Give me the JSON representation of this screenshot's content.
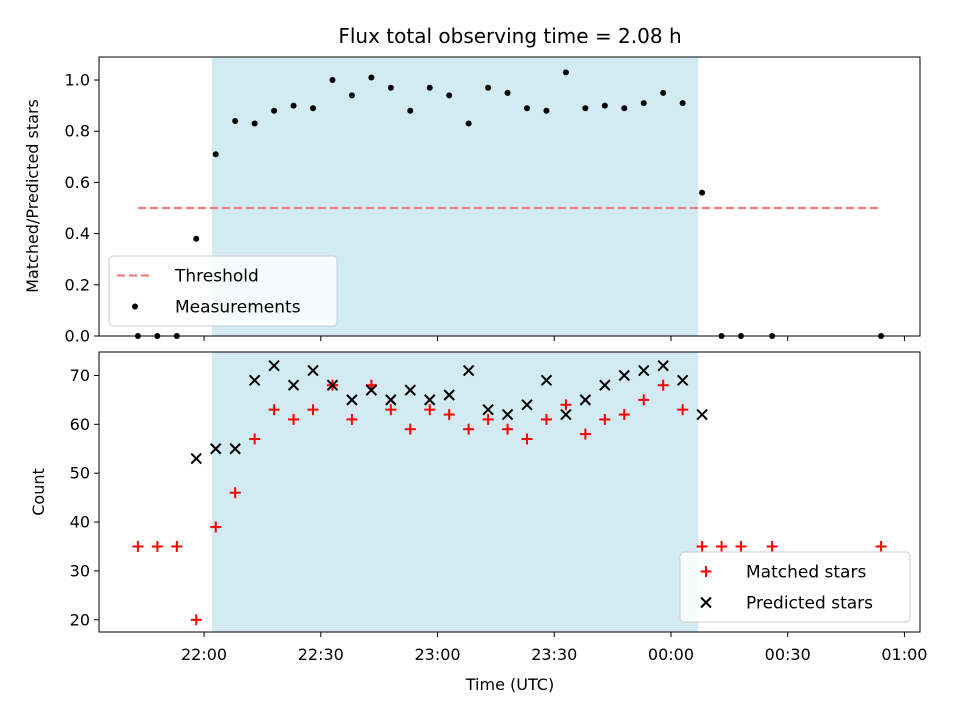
{
  "chart_data": {
    "title": "Flux total observing time = 2.08 h",
    "xlabel": "Time (UTC)",
    "x_ticks": [
      "22:00",
      "22:30",
      "23:00",
      "23:30",
      "00:00",
      "00:30",
      "01:00"
    ],
    "x_tick_minutes": [
      0,
      30,
      60,
      90,
      120,
      150,
      180
    ],
    "xlim_minutes": [
      -27,
      184
    ],
    "observing_window_minutes": [
      2,
      127
    ],
    "observing_window_color": "#add8e6",
    "panels": [
      {
        "type": "scatter",
        "ylabel": "Matched/Predicted stars",
        "ylim": [
          0,
          1.09
        ],
        "y_ticks": [
          "0.0",
          "0.2",
          "0.4",
          "0.6",
          "0.8",
          "1.0"
        ],
        "y_tick_values": [
          0,
          0.2,
          0.4,
          0.6,
          0.8,
          1.0
        ],
        "threshold": {
          "label": "Threshold",
          "value": 0.5,
          "x_range": [
            -17,
            174
          ],
          "color": "#f08080"
        },
        "legend": {
          "position": "lower-left",
          "items": [
            "Threshold",
            "Measurements"
          ]
        },
        "series": [
          {
            "name": "Measurements",
            "color": "#000000",
            "x": [
              -17,
              -12,
              -7,
              -2,
              3,
              8,
              13,
              18,
              23,
              28,
              33,
              38,
              43,
              48,
              53,
              58,
              63,
              68,
              73,
              78,
              83,
              88,
              93,
              98,
              103,
              108,
              113,
              118,
              123,
              128,
              133,
              138,
              146,
              174
            ],
            "y": [
              0,
              0,
              0,
              0.38,
              0.71,
              0.84,
              0.83,
              0.88,
              0.9,
              0.89,
              1.0,
              0.94,
              1.01,
              0.97,
              0.88,
              0.97,
              0.94,
              0.83,
              0.97,
              0.95,
              0.89,
              0.88,
              1.03,
              0.89,
              0.9,
              0.89,
              0.91,
              0.95,
              0.91,
              0.56,
              0,
              0,
              0,
              0
            ]
          }
        ]
      },
      {
        "type": "scatter",
        "ylabel": "Count",
        "ylim": [
          17.5,
          74.8
        ],
        "y_ticks": [
          "20",
          "30",
          "40",
          "50",
          "60",
          "70"
        ],
        "y_tick_values": [
          20,
          30,
          40,
          50,
          60,
          70
        ],
        "legend": {
          "position": "lower-right",
          "items": [
            "Matched stars",
            "Predicted stars"
          ]
        },
        "series": [
          {
            "name": "Matched stars",
            "marker": "+",
            "color": "#ff0000",
            "x": [
              -17,
              -12,
              -7,
              -2,
              3,
              8,
              13,
              18,
              23,
              28,
              33,
              38,
              43,
              48,
              53,
              58,
              63,
              68,
              73,
              78,
              83,
              88,
              93,
              98,
              103,
              108,
              113,
              118,
              123,
              128,
              133,
              138,
              146,
              174
            ],
            "y": [
              35,
              35,
              35,
              20,
              39,
              46,
              57,
              63,
              61,
              63,
              68,
              61,
              68,
              63,
              59,
              63,
              62,
              59,
              61,
              59,
              57,
              61,
              64,
              58,
              61,
              62,
              65,
              68,
              63,
              35,
              35,
              35,
              35,
              35
            ]
          },
          {
            "name": "Predicted stars",
            "marker": "x",
            "color": "#000000",
            "x": [
              -2,
              3,
              8,
              13,
              18,
              23,
              28,
              33,
              38,
              43,
              48,
              53,
              58,
              63,
              68,
              73,
              78,
              83,
              88,
              93,
              98,
              103,
              108,
              113,
              118,
              123,
              128
            ],
            "y": [
              53,
              55,
              55,
              69,
              72,
              68,
              71,
              68,
              65,
              67,
              65,
              67,
              65,
              66,
              71,
              63,
              62,
              64,
              69,
              62,
              65,
              68,
              70,
              71,
              72,
              69,
              62
            ]
          }
        ]
      }
    ]
  }
}
